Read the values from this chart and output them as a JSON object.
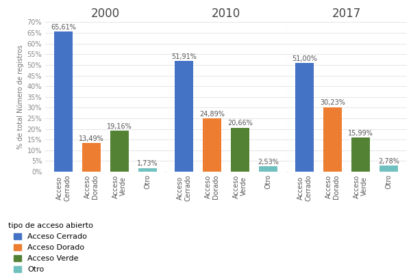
{
  "years": [
    "2000",
    "2010",
    "2017"
  ],
  "categories": [
    "Acceso\nCerrado",
    "Acceso\nDorado",
    "Acceso\nVerde",
    "Otro"
  ],
  "values": {
    "2000": [
      65.61,
      13.49,
      19.16,
      1.73
    ],
    "2010": [
      51.91,
      24.89,
      20.66,
      2.53
    ],
    "2017": [
      51.0,
      30.23,
      15.99,
      2.78
    ]
  },
  "bar_colors": [
    "#4472c4",
    "#ed7d31",
    "#548235",
    "#70c0bf"
  ],
  "ylabel": "% de total Número de registros",
  "ylim": [
    0,
    70
  ],
  "yticks": [
    0,
    5,
    10,
    15,
    20,
    25,
    30,
    35,
    40,
    45,
    50,
    55,
    60,
    65,
    70
  ],
  "ytick_labels": [
    "0%",
    "5%",
    "10%",
    "15%",
    "20%",
    "25%",
    "30%",
    "35%",
    "40%",
    "45%",
    "50%",
    "55%",
    "60%",
    "65%",
    "70%"
  ],
  "legend_title": "tipo de acceso abierto",
  "legend_labels": [
    "Acceso Cerrado",
    "Acceso Dorado",
    "Acceso Verde",
    "Otro"
  ],
  "background_color": "#ffffff",
  "title_fontsize": 12,
  "label_fontsize": 7,
  "tick_fontsize": 7,
  "ylabel_fontsize": 7,
  "legend_fontsize": 8
}
